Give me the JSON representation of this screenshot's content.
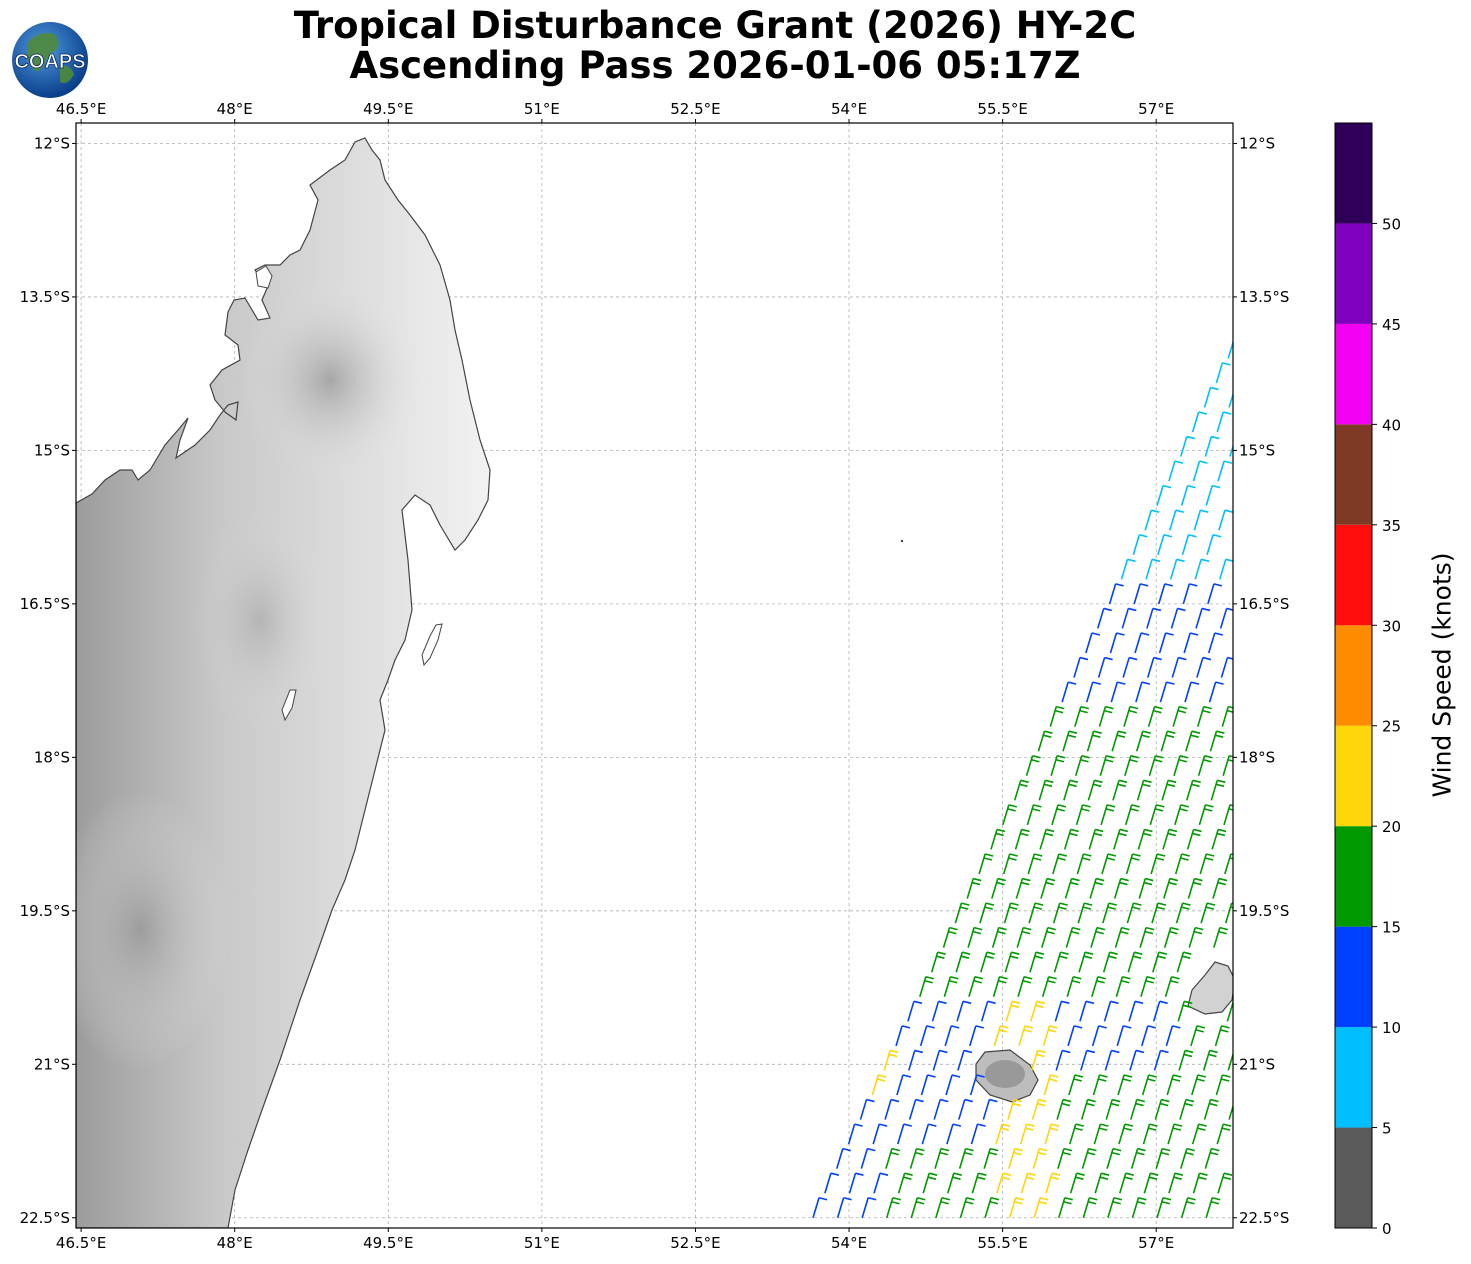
{
  "title": {
    "line1": "Tropical Disturbance Grant (2026) HY-2C",
    "line2": "Ascending Pass 2026-01-06 05:17Z"
  },
  "logo": {
    "text": "COAPS",
    "icon": "globe-icon"
  },
  "map": {
    "extent": {
      "lon": [
        46.45,
        57.75
      ],
      "lat": [
        -22.6,
        -11.8
      ]
    },
    "lon_ticks": [
      "46.5°E",
      "48°E",
      "49.5°E",
      "51°E",
      "52.5°E",
      "54°E",
      "55.5°E",
      "57°E"
    ],
    "lon_values": [
      46.5,
      48,
      49.5,
      51,
      52.5,
      54,
      55.5,
      57
    ],
    "lat_ticks": [
      "12°S",
      "13.5°S",
      "15°S",
      "16.5°S",
      "18°S",
      "19.5°S",
      "21°S",
      "22.5°S"
    ],
    "lat_values": [
      -12,
      -13.5,
      -15,
      -16.5,
      -18,
      -19.5,
      -21,
      -22.5
    ],
    "gridlines": true,
    "land": [
      "Madagascar",
      "Réunion",
      "Mauritius"
    ],
    "swath": {
      "sensor": "HY-2C",
      "pass": "ascending",
      "edge_lons_at_lat_-22.6": [
        53.55,
        57.75
      ],
      "edge_lons_at_lat_-13.9": [
        57.75,
        57.75
      ]
    }
  },
  "colorbar": {
    "label": "Wind Speed (knots)",
    "ticks": [
      "0",
      "5",
      "10",
      "15",
      "20",
      "25",
      "30",
      "35",
      "40",
      "45",
      "50"
    ],
    "bins": [
      {
        "min": 0,
        "max": 5,
        "color": "#5a5a5a"
      },
      {
        "min": 5,
        "max": 10,
        "color": "#00bfff"
      },
      {
        "min": 10,
        "max": 15,
        "color": "#0040ff"
      },
      {
        "min": 15,
        "max": 20,
        "color": "#009900"
      },
      {
        "min": 20,
        "max": 25,
        "color": "#ffd60a"
      },
      {
        "min": 25,
        "max": 30,
        "color": "#ff8c00"
      },
      {
        "min": 30,
        "max": 35,
        "color": "#ff0d0d"
      },
      {
        "min": 35,
        "max": 40,
        "color": "#7f3a26"
      },
      {
        "min": 40,
        "max": 45,
        "color": "#f200f2"
      },
      {
        "min": 45,
        "max": 50,
        "color": "#8000bf"
      },
      {
        "min": 50,
        "max": 55,
        "color": "#2e0059"
      }
    ]
  }
}
